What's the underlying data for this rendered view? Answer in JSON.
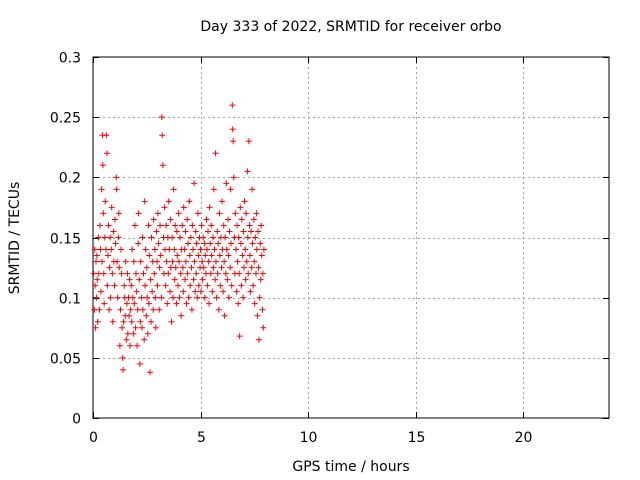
{
  "chart_data": {
    "type": "scatter",
    "title": "Day 333 of 2022, SRMTID for receiver orbo",
    "xlabel": "GPS time / hours",
    "ylabel": "SRMTID / TECUs",
    "xlim": [
      0,
      24
    ],
    "ylim": [
      0,
      0.3
    ],
    "xticks": [
      0,
      5,
      10,
      15,
      20
    ],
    "xtick_labels": [
      "0",
      "5",
      "10",
      "15",
      "20"
    ],
    "yticks": [
      0,
      0.05,
      0.1,
      0.15,
      0.2,
      0.25,
      0.3
    ],
    "ytick_labels": [
      "0",
      "0.05",
      "0.1",
      "0.15",
      "0.2",
      "0.25",
      "0.3"
    ],
    "grid": true,
    "marker": "+",
    "color": "#ff0000",
    "series": [
      {
        "points": [
          [
            0.03,
            0.12
          ],
          [
            0.06,
            0.09
          ],
          [
            0.08,
            0.14
          ],
          [
            0.1,
            0.11
          ],
          [
            0.12,
            0.075
          ],
          [
            0.14,
            0.13
          ],
          [
            0.16,
            0.1
          ],
          [
            0.18,
            0.135
          ],
          [
            0.2,
            0.115
          ],
          [
            0.22,
            0.08
          ],
          [
            0.25,
            0.15
          ],
          [
            0.27,
            0.12
          ],
          [
            0.3,
            0.09
          ],
          [
            0.32,
            0.16
          ],
          [
            0.35,
            0.14
          ],
          [
            0.37,
            0.105
          ],
          [
            0.4,
            0.19
          ],
          [
            0.42,
            0.13
          ],
          [
            0.44,
            0.235
          ],
          [
            0.46,
            0.21
          ],
          [
            0.48,
            0.17
          ],
          [
            0.5,
            0.12
          ],
          [
            0.52,
            0.095
          ],
          [
            0.55,
            0.15
          ],
          [
            0.57,
            0.18
          ],
          [
            0.6,
            0.14
          ],
          [
            0.62,
            0.235
          ],
          [
            0.65,
            0.22
          ],
          [
            0.67,
            0.11
          ],
          [
            0.7,
            0.135
          ],
          [
            0.72,
            0.16
          ],
          [
            0.75,
            0.09
          ],
          [
            0.77,
            0.125
          ],
          [
            0.8,
            0.15
          ],
          [
            0.82,
            0.1
          ],
          [
            0.85,
            0.14
          ],
          [
            0.87,
            0.175
          ],
          [
            0.9,
            0.12
          ],
          [
            0.92,
            0.08
          ],
          [
            0.95,
            0.155
          ],
          [
            0.97,
            0.13
          ],
          [
            1.0,
            0.11
          ],
          [
            1.02,
            0.165
          ],
          [
            1.05,
            0.145
          ],
          [
            1.08,
            0.2
          ],
          [
            1.1,
            0.19
          ],
          [
            1.12,
            0.13
          ],
          [
            1.15,
            0.1
          ],
          [
            1.18,
            0.15
          ],
          [
            1.2,
            0.17
          ],
          [
            1.22,
            0.125
          ],
          [
            1.25,
            0.06
          ],
          [
            1.28,
            0.09
          ],
          [
            1.3,
            0.14
          ],
          [
            1.32,
            0.12
          ],
          [
            1.35,
            0.075
          ],
          [
            1.38,
            0.05
          ],
          [
            1.4,
            0.04
          ],
          [
            1.42,
            0.08
          ],
          [
            1.45,
            0.11
          ],
          [
            1.48,
            0.1
          ],
          [
            1.5,
            0.085
          ],
          [
            1.52,
            0.13
          ],
          [
            1.55,
            0.065
          ],
          [
            1.58,
            0.095
          ],
          [
            1.6,
            0.12
          ],
          [
            1.62,
            0.07
          ],
          [
            1.65,
            0.1
          ],
          [
            1.68,
            0.085
          ],
          [
            1.7,
            0.115
          ],
          [
            1.72,
            0.06
          ],
          [
            1.75,
            0.09
          ],
          [
            1.78,
            0.11
          ],
          [
            1.8,
            0.08
          ],
          [
            1.82,
            0.14
          ],
          [
            1.85,
            0.1
          ],
          [
            1.88,
            0.07
          ],
          [
            1.9,
            0.13
          ],
          [
            1.92,
            0.095
          ],
          [
            1.95,
            0.16
          ],
          [
            1.98,
            0.075
          ],
          [
            2.0,
            0.12
          ],
          [
            2.03,
            0.105
          ],
          [
            2.05,
            0.06
          ],
          [
            2.08,
            0.09
          ],
          [
            2.1,
            0.145
          ],
          [
            2.12,
            0.17
          ],
          [
            2.15,
            0.115
          ],
          [
            2.18,
            0.045
          ],
          [
            2.2,
            0.08
          ],
          [
            2.22,
            0.13
          ],
          [
            2.25,
            0.1
          ],
          [
            2.28,
            0.075
          ],
          [
            2.3,
            0.15
          ],
          [
            2.32,
            0.09
          ],
          [
            2.35,
            0.12
          ],
          [
            2.38,
            0.065
          ],
          [
            2.4,
            0.18
          ],
          [
            2.42,
            0.11
          ],
          [
            2.45,
            0.14
          ],
          [
            2.48,
            0.085
          ],
          [
            2.5,
            0.125
          ],
          [
            2.52,
            0.1
          ],
          [
            2.55,
            0.07
          ],
          [
            2.58,
            0.16
          ],
          [
            2.6,
            0.095
          ],
          [
            2.62,
            0.135
          ],
          [
            2.65,
            0.038
          ],
          [
            2.68,
            0.115
          ],
          [
            2.7,
            0.08
          ],
          [
            2.72,
            0.15
          ],
          [
            2.75,
            0.105
          ],
          [
            2.78,
            0.13
          ],
          [
            2.8,
            0.09
          ],
          [
            2.82,
            0.165
          ],
          [
            2.85,
            0.12
          ],
          [
            2.88,
            0.14
          ],
          [
            2.9,
            0.1
          ],
          [
            2.92,
            0.075
          ],
          [
            2.95,
            0.155
          ],
          [
            2.98,
            0.13
          ],
          [
            3.0,
            0.11
          ],
          [
            3.02,
            0.17
          ],
          [
            3.05,
            0.145
          ],
          [
            3.08,
            0.09
          ],
          [
            3.1,
            0.125
          ],
          [
            3.12,
            0.16
          ],
          [
            3.15,
            0.135
          ],
          [
            3.18,
            0.1
          ],
          [
            3.2,
            0.25
          ],
          [
            3.22,
            0.235
          ],
          [
            3.25,
            0.21
          ],
          [
            3.28,
            0.15
          ],
          [
            3.3,
            0.12
          ],
          [
            3.32,
            0.175
          ],
          [
            3.35,
            0.14
          ],
          [
            3.38,
            0.11
          ],
          [
            3.4,
            0.16
          ],
          [
            3.42,
            0.13
          ],
          [
            3.45,
            0.095
          ],
          [
            3.48,
            0.15
          ],
          [
            3.5,
            0.12
          ],
          [
            3.52,
            0.18
          ],
          [
            3.55,
            0.14
          ],
          [
            3.58,
            0.105
          ],
          [
            3.6,
            0.165
          ],
          [
            3.62,
            0.125
          ],
          [
            3.65,
            0.08
          ],
          [
            3.68,
            0.15
          ],
          [
            3.7,
            0.13
          ],
          [
            3.72,
            0.1
          ],
          [
            3.75,
            0.19
          ],
          [
            3.78,
            0.14
          ],
          [
            3.8,
            0.115
          ],
          [
            3.82,
            0.16
          ],
          [
            3.85,
            0.125
          ],
          [
            3.88,
            0.095
          ],
          [
            3.9,
            0.155
          ],
          [
            3.92,
            0.135
          ],
          [
            3.95,
            0.11
          ],
          [
            3.98,
            0.17
          ],
          [
            4.0,
            0.13
          ],
          [
            4.02,
            0.1
          ],
          [
            4.05,
            0.15
          ],
          [
            4.08,
            0.12
          ],
          [
            4.1,
            0.085
          ],
          [
            4.12,
            0.14
          ],
          [
            4.15,
            0.16
          ],
          [
            4.18,
            0.125
          ],
          [
            4.2,
            0.105
          ],
          [
            4.22,
            0.175
          ],
          [
            4.25,
            0.14
          ],
          [
            4.28,
            0.115
          ],
          [
            4.3,
            0.155
          ],
          [
            4.32,
            0.13
          ],
          [
            4.35,
            0.095
          ],
          [
            4.38,
            0.165
          ],
          [
            4.4,
            0.12
          ],
          [
            4.42,
            0.145
          ],
          [
            4.45,
            0.1
          ],
          [
            4.48,
            0.18
          ],
          [
            4.5,
            0.135
          ],
          [
            4.52,
            0.11
          ],
          [
            4.55,
            0.15
          ],
          [
            4.58,
            0.125
          ],
          [
            4.6,
            0.09
          ],
          [
            4.62,
            0.16
          ],
          [
            4.65,
            0.14
          ],
          [
            4.68,
            0.115
          ],
          [
            4.7,
            0.195
          ],
          [
            4.72,
            0.13
          ],
          [
            4.75,
            0.105
          ],
          [
            4.78,
            0.155
          ],
          [
            4.8,
            0.12
          ],
          [
            4.82,
            0.145
          ],
          [
            4.85,
            0.1
          ],
          [
            4.88,
            0.17
          ],
          [
            4.9,
            0.135
          ],
          [
            4.92,
            0.11
          ],
          [
            4.95,
            0.15
          ],
          [
            4.98,
            0.125
          ],
          [
            5.0,
            0.14
          ],
          [
            5.02,
            0.105
          ],
          [
            5.05,
            0.16
          ],
          [
            5.08,
            0.13
          ],
          [
            5.1,
            0.115
          ],
          [
            5.12,
            0.15
          ],
          [
            5.15,
            0.125
          ],
          [
            5.18,
            0.145
          ],
          [
            5.2,
            0.1
          ],
          [
            5.22,
            0.135
          ],
          [
            5.25,
            0.12
          ],
          [
            5.28,
            0.165
          ],
          [
            5.3,
            0.14
          ],
          [
            5.32,
            0.11
          ],
          [
            5.35,
            0.155
          ],
          [
            5.38,
            0.13
          ],
          [
            5.4,
            0.095
          ],
          [
            5.42,
            0.175
          ],
          [
            5.45,
            0.145
          ],
          [
            5.48,
            0.12
          ],
          [
            5.5,
            0.16
          ],
          [
            5.52,
            0.135
          ],
          [
            5.55,
            0.105
          ],
          [
            5.58,
            0.15
          ],
          [
            5.6,
            0.125
          ],
          [
            5.62,
            0.19
          ],
          [
            5.65,
            0.14
          ],
          [
            5.68,
            0.115
          ],
          [
            5.7,
            0.22
          ],
          [
            5.72,
            0.13
          ],
          [
            5.75,
            0.1
          ],
          [
            5.78,
            0.155
          ],
          [
            5.8,
            0.12
          ],
          [
            5.82,
            0.145
          ],
          [
            5.85,
            0.09
          ],
          [
            5.88,
            0.17
          ],
          [
            5.9,
            0.135
          ],
          [
            5.92,
            0.11
          ],
          [
            5.95,
            0.15
          ],
          [
            5.98,
            0.125
          ],
          [
            6.0,
            0.18
          ],
          [
            6.02,
            0.14
          ],
          [
            6.05,
            0.105
          ],
          [
            6.08,
            0.16
          ],
          [
            6.1,
            0.13
          ],
          [
            6.12,
            0.085
          ],
          [
            6.15,
            0.15
          ],
          [
            6.18,
            0.12
          ],
          [
            6.2,
            0.195
          ],
          [
            6.22,
            0.14
          ],
          [
            6.25,
            0.115
          ],
          [
            6.28,
            0.165
          ],
          [
            6.3,
            0.135
          ],
          [
            6.32,
            0.1
          ],
          [
            6.35,
            0.155
          ],
          [
            6.38,
            0.125
          ],
          [
            6.4,
            0.19
          ],
          [
            6.42,
            0.145
          ],
          [
            6.45,
            0.11
          ],
          [
            6.48,
            0.26
          ],
          [
            6.5,
            0.24
          ],
          [
            6.52,
            0.23
          ],
          [
            6.55,
            0.2
          ],
          [
            6.58,
            0.15
          ],
          [
            6.6,
            0.12
          ],
          [
            6.62,
            0.17
          ],
          [
            6.65,
            0.14
          ],
          [
            6.68,
            0.105
          ],
          [
            6.7,
            0.16
          ],
          [
            6.72,
            0.13
          ],
          [
            6.75,
            0.095
          ],
          [
            6.78,
            0.15
          ],
          [
            6.8,
            0.12
          ],
          [
            6.82,
            0.068
          ],
          [
            6.85,
            0.175
          ],
          [
            6.88,
            0.145
          ],
          [
            6.9,
            0.11
          ],
          [
            6.92,
            0.165
          ],
          [
            6.95,
            0.135
          ],
          [
            6.98,
            0.1
          ],
          [
            7.0,
            0.155
          ],
          [
            7.02,
            0.125
          ],
          [
            7.05,
            0.18
          ],
          [
            7.08,
            0.14
          ],
          [
            7.1,
            0.115
          ],
          [
            7.12,
            0.17
          ],
          [
            7.15,
            0.13
          ],
          [
            7.18,
            0.205
          ],
          [
            7.2,
            0.15
          ],
          [
            7.22,
            0.12
          ],
          [
            7.25,
            0.23
          ],
          [
            7.28,
            0.16
          ],
          [
            7.3,
            0.135
          ],
          [
            7.32,
            0.105
          ],
          [
            7.35,
            0.155
          ],
          [
            7.38,
            0.125
          ],
          [
            7.4,
            0.19
          ],
          [
            7.42,
            0.145
          ],
          [
            7.45,
            0.11
          ],
          [
            7.48,
            0.165
          ],
          [
            7.5,
            0.13
          ],
          [
            7.52,
            0.095
          ],
          [
            7.55,
            0.15
          ],
          [
            7.58,
            0.12
          ],
          [
            7.6,
            0.17
          ],
          [
            7.62,
            0.14
          ],
          [
            7.65,
            0.085
          ],
          [
            7.68,
            0.155
          ],
          [
            7.7,
            0.125
          ],
          [
            7.72,
            0.065
          ],
          [
            7.75,
            0.1
          ],
          [
            7.78,
            0.145
          ],
          [
            7.8,
            0.115
          ],
          [
            7.82,
            0.16
          ],
          [
            7.85,
            0.135
          ],
          [
            7.88,
            0.09
          ],
          [
            7.9,
            0.12
          ],
          [
            7.92,
            0.075
          ],
          [
            7.95,
            0.14
          ]
        ]
      }
    ]
  }
}
